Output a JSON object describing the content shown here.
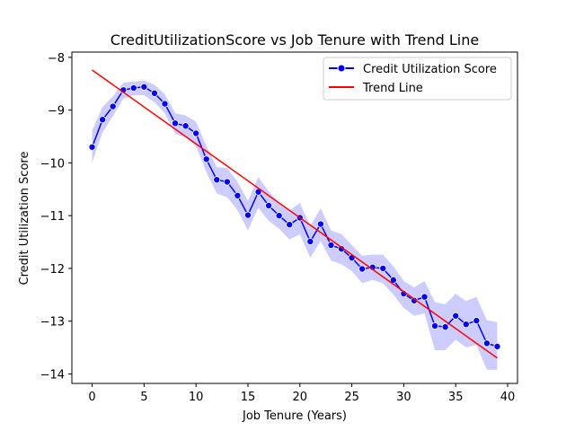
{
  "chart_data": {
    "type": "line",
    "title": "CreditUtilizationScore vs Job Tenure with Trend Line",
    "xlabel": "Job Tenure (Years)",
    "ylabel": "Credit Utilization Score",
    "xlim": [
      -1.95,
      40.95
    ],
    "ylim": [
      -14.18,
      -7.9
    ],
    "xticks": [
      0,
      5,
      10,
      15,
      20,
      25,
      30,
      35,
      40
    ],
    "yticks": [
      -14,
      -13,
      -12,
      -11,
      -10,
      -9,
      -8
    ],
    "xtick_labels": [
      "0",
      "5",
      "10",
      "15",
      "20",
      "25",
      "30",
      "35",
      "40"
    ],
    "ytick_labels": [
      "−14",
      "−13",
      "−12",
      "−11",
      "−10",
      "−9",
      "−8"
    ],
    "grid": false,
    "legend_position": "top-right",
    "series": [
      {
        "name": "Credit Utilization Score",
        "color": "#0000ff",
        "marker": "circle",
        "x": [
          0,
          1,
          2,
          3,
          4,
          5,
          6,
          7,
          8,
          9,
          10,
          11,
          12,
          13,
          14,
          15,
          16,
          17,
          18,
          19,
          20,
          21,
          22,
          23,
          24,
          25,
          26,
          27,
          28,
          29,
          30,
          31,
          32,
          33,
          34,
          35,
          36,
          37,
          38,
          39
        ],
        "y": [
          -9.7,
          -9.18,
          -8.93,
          -8.62,
          -8.58,
          -8.56,
          -8.68,
          -8.88,
          -9.25,
          -9.3,
          -9.44,
          -9.93,
          -10.32,
          -10.36,
          -10.62,
          -10.99,
          -10.55,
          -10.81,
          -11.0,
          -11.17,
          -11.04,
          -11.49,
          -11.16,
          -11.56,
          -11.63,
          -11.8,
          -12.01,
          -11.98,
          -12.0,
          -12.22,
          -12.48,
          -12.61,
          -12.54,
          -13.09,
          -13.11,
          -12.9,
          -13.06,
          -12.99,
          -13.42,
          -13.48
        ]
      },
      {
        "name": "Trend Line",
        "color": "#ff0000",
        "x": [
          0,
          39
        ],
        "y": [
          -8.24,
          -13.7
        ]
      }
    ],
    "confidence_band": {
      "color": "#0000ff",
      "x": [
        0,
        1,
        2,
        3,
        4,
        5,
        6,
        7,
        8,
        9,
        10,
        11,
        12,
        13,
        14,
        15,
        16,
        17,
        18,
        19,
        20,
        21,
        22,
        23,
        24,
        25,
        26,
        27,
        28,
        29,
        30,
        31,
        32,
        33,
        34,
        35,
        36,
        37,
        38,
        39
      ],
      "lower": [
        -10.0,
        -9.42,
        -9.12,
        -8.78,
        -8.72,
        -8.72,
        -8.85,
        -9.06,
        -9.45,
        -9.52,
        -9.68,
        -10.18,
        -10.58,
        -10.65,
        -10.9,
        -11.28,
        -10.85,
        -11.1,
        -11.25,
        -11.45,
        -11.35,
        -11.8,
        -11.48,
        -11.85,
        -11.92,
        -12.05,
        -12.28,
        -12.22,
        -12.28,
        -12.5,
        -12.75,
        -12.9,
        -12.85,
        -13.55,
        -13.55,
        -13.35,
        -13.5,
        -13.45,
        -13.92,
        -13.92
      ],
      "upper": [
        -9.38,
        -8.94,
        -8.74,
        -8.48,
        -8.46,
        -8.44,
        -8.52,
        -8.7,
        -9.06,
        -9.1,
        -9.22,
        -9.68,
        -10.08,
        -10.1,
        -10.36,
        -10.72,
        -10.27,
        -10.54,
        -10.76,
        -10.9,
        -10.76,
        -11.2,
        -10.86,
        -11.28,
        -11.35,
        -11.56,
        -11.76,
        -11.74,
        -11.74,
        -11.96,
        -12.24,
        -12.36,
        -12.24,
        -12.64,
        -12.68,
        -12.48,
        -12.62,
        -12.54,
        -12.98,
        -13.02
      ]
    }
  }
}
